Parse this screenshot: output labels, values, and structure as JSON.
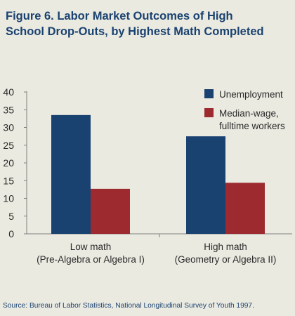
{
  "colors": {
    "background": "#ebeae1",
    "title": "#1a4270",
    "unemployment": "#1a4270",
    "median_wage": "#9c2a2f",
    "text": "#2a2a2a",
    "source": "#1a4270"
  },
  "chart_data": {
    "type": "bar",
    "title": "Figure 6. Labor Market Outcomes of High School Drop-Outs, by Highest Math Completed",
    "title_lines": [
      "Figure 6. Labor Market Outcomes of High",
      "School Drop-Outs, by Highest Math Completed"
    ],
    "categories": [
      [
        "Low math",
        "(Pre-Algebra or Algebra I)"
      ],
      [
        "High math",
        "(Geometry or Algebra II)"
      ]
    ],
    "series": [
      {
        "name": "Unemployment",
        "values": [
          33.5,
          27.5
        ],
        "color": "#1a4270"
      },
      {
        "name": "Median-wage, fulltime workers",
        "name_lines": [
          "Median-wage,",
          "fulltime workers"
        ],
        "values": [
          12.7,
          14.4
        ],
        "color": "#9c2a2f"
      }
    ],
    "ylim": [
      0,
      40
    ],
    "yticks": [
      0,
      5,
      10,
      15,
      20,
      25,
      30,
      35,
      40
    ],
    "grid": false,
    "legend_position": "top-right",
    "xlabel": "",
    "ylabel": ""
  },
  "source": "Source: Bureau of Labor Statistics, National Longitudinal Survey of Youth 1997."
}
